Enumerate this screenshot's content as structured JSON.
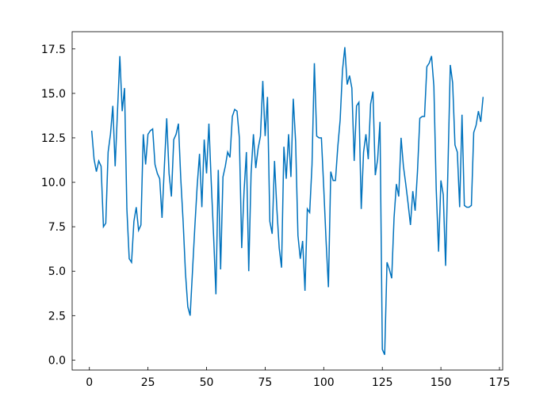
{
  "chart_data": {
    "type": "line",
    "x": [
      1,
      2,
      3,
      4,
      5,
      6,
      7,
      8,
      9,
      10,
      11,
      12,
      13,
      14,
      15,
      16,
      17,
      18,
      19,
      20,
      21,
      22,
      23,
      24,
      25,
      26,
      27,
      28,
      29,
      30,
      31,
      32,
      33,
      34,
      35,
      36,
      37,
      38,
      39,
      40,
      41,
      42,
      43,
      44,
      45,
      46,
      47,
      48,
      49,
      50,
      51,
      52,
      53,
      54,
      55,
      56,
      57,
      58,
      59,
      60,
      61,
      62,
      63,
      64,
      65,
      66,
      67,
      68,
      69,
      70,
      71,
      72,
      73,
      74,
      75,
      76,
      77,
      78,
      79,
      80,
      81,
      82,
      83,
      84,
      85,
      86,
      87,
      88,
      89,
      90,
      91,
      92,
      93,
      94,
      95,
      96,
      97,
      98,
      99,
      100,
      101,
      102,
      103,
      104,
      105,
      106,
      107,
      108,
      109,
      110,
      111,
      112,
      113,
      114,
      115,
      116,
      117,
      118,
      119,
      120,
      121,
      122,
      123,
      124,
      125,
      126,
      127,
      128,
      129,
      130,
      131,
      132,
      133,
      134,
      135,
      136,
      137,
      138,
      139,
      140,
      141,
      142,
      143,
      144,
      145,
      146,
      147,
      148,
      149,
      150,
      151,
      152,
      153,
      154,
      155,
      156,
      157,
      158,
      159,
      160,
      161,
      162,
      163,
      164,
      165,
      166,
      167,
      168
    ],
    "series": [
      {
        "color": "#0072bd",
        "values": [
          12.9,
          11.3,
          10.6,
          11.2,
          10.9,
          7.5,
          7.7,
          11.7,
          12.7,
          14.3,
          10.9,
          14.0,
          17.1,
          14.0,
          15.3,
          8.5,
          5.7,
          5.5,
          7.8,
          8.6,
          7.3,
          7.6,
          12.7,
          11.0,
          12.7,
          12.9,
          13.0,
          11.0,
          10.5,
          10.2,
          8.0,
          10.9,
          13.6,
          10.5,
          9.2,
          12.4,
          12.7,
          13.3,
          10.2,
          7.8,
          4.9,
          3.0,
          2.5,
          5.0,
          7.5,
          9.8,
          11.6,
          8.6,
          12.4,
          10.5,
          13.3,
          10.0,
          7.0,
          3.7,
          10.7,
          5.1,
          10.3,
          10.9,
          11.7,
          11.4,
          13.7,
          14.1,
          14.0,
          12.5,
          6.3,
          9.5,
          11.7,
          5.0,
          10.5,
          12.7,
          10.8,
          11.9,
          12.6,
          15.7,
          12.6,
          14.8,
          7.8,
          7.1,
          11.2,
          8.5,
          6.3,
          5.2,
          12.0,
          10.2,
          12.7,
          10.3,
          14.7,
          12.3,
          7.0,
          5.7,
          6.7,
          3.9,
          8.5,
          8.3,
          11.0,
          16.7,
          12.6,
          12.5,
          12.5,
          9.7,
          6.7,
          4.1,
          10.6,
          10.1,
          10.1,
          12.0,
          13.5,
          16.3,
          17.6,
          15.5,
          16.0,
          15.3,
          11.2,
          14.3,
          14.5,
          8.5,
          11.7,
          12.7,
          11.3,
          14.4,
          15.1,
          10.4,
          11.3,
          13.4,
          0.6,
          0.3,
          5.5,
          5.1,
          4.6,
          8.0,
          9.9,
          9.2,
          12.5,
          10.9,
          9.9,
          8.8,
          7.6,
          9.5,
          8.4,
          10.6,
          13.6,
          13.7,
          13.7,
          16.5,
          16.7,
          17.1,
          15.4,
          9.6,
          6.1,
          10.1,
          9.3,
          5.3,
          10.8,
          16.6,
          15.6,
          12.1,
          11.7,
          8.6,
          13.8,
          8.7,
          8.6,
          8.6,
          8.7,
          12.8,
          13.2,
          14.0,
          13.4,
          14.8
        ]
      }
    ],
    "xlim": [
      -7.35,
      176.35
    ],
    "xticks": [
      0,
      25,
      50,
      75,
      100,
      125,
      150,
      175
    ],
    "ylim": [
      -0.56,
      18.47
    ],
    "yticks": [
      {
        "value": 0,
        "label": "0.0"
      },
      2.5,
      {
        "value": 5,
        "label": "5.0"
      },
      7.5,
      {
        "value": 10,
        "label": "10.0"
      },
      12.5,
      {
        "value": 15,
        "label": "15.0"
      },
      17.5
    ]
  }
}
